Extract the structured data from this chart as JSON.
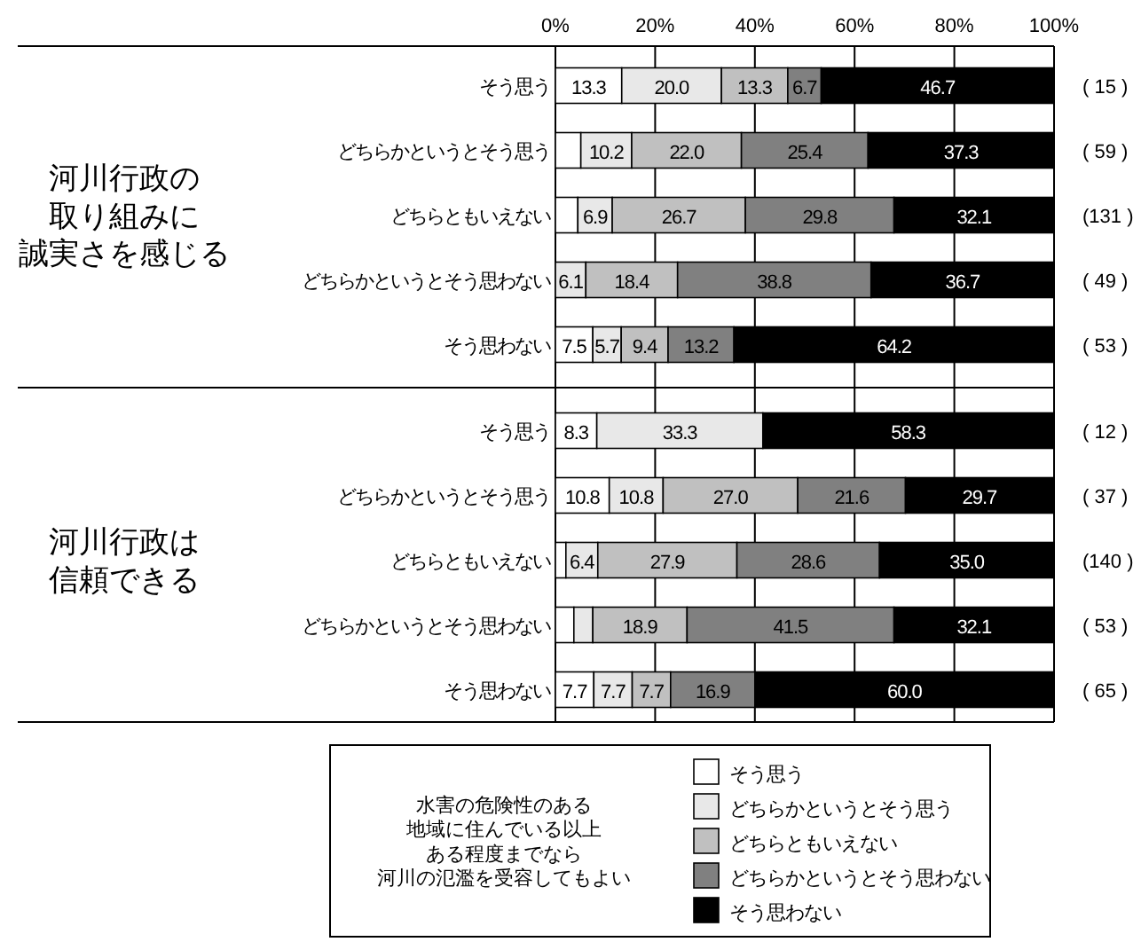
{
  "chart_data": {
    "type": "bar",
    "orientation": "horizontal",
    "stacked": true,
    "categories": [
      "そう思う",
      "どちらかというとそう思う",
      "どちらともいえない",
      "どちらかというとそう思わない",
      "そう思わない",
      "そう思う",
      "どちらかというとそう思う",
      "どちらともいえない",
      "どちらかというとそう思わない",
      "そう思わない"
    ],
    "series": [
      {
        "name": "そう思う",
        "color": "#ffffff",
        "values": [
          13.3,
          5.1,
          4.5,
          0,
          7.5,
          8.3,
          10.8,
          2.1,
          3.7,
          7.7
        ],
        "value_labels": [
          "13.3",
          null,
          null,
          null,
          "7.5",
          "8.3",
          "10.8",
          null,
          null,
          "7.7"
        ]
      },
      {
        "name": "どちらかというとそう思う",
        "color": "#e8e8e8",
        "values": [
          20.0,
          10.2,
          6.9,
          6.1,
          5.7,
          33.3,
          10.8,
          6.4,
          3.8,
          7.7
        ],
        "value_labels": [
          "20.0",
          "10.2",
          "6.9",
          "6.1",
          "5.7",
          "33.3",
          "10.8",
          "6.4",
          null,
          "7.7"
        ]
      },
      {
        "name": "どちらともいえない",
        "color": "#c0c0c0",
        "values": [
          13.3,
          22.0,
          26.7,
          18.4,
          9.4,
          0,
          27.0,
          27.9,
          18.9,
          7.7
        ],
        "value_labels": [
          "13.3",
          "22.0",
          "26.7",
          "18.4",
          "9.4",
          null,
          "27.0",
          "27.9",
          "18.9",
          "7.7"
        ]
      },
      {
        "name": "どちらかというとそう思わない",
        "color": "#808080",
        "values": [
          6.7,
          25.4,
          29.8,
          38.8,
          13.2,
          0,
          21.6,
          28.6,
          41.5,
          16.9
        ],
        "value_labels": [
          "6.7",
          "25.4",
          "29.8",
          "38.8",
          "13.2",
          null,
          "21.6",
          "28.6",
          "41.5",
          "16.9"
        ]
      },
      {
        "name": "そう思わない",
        "color": "#000000",
        "values": [
          46.7,
          37.3,
          32.1,
          36.7,
          64.2,
          58.3,
          29.7,
          35.0,
          32.1,
          60.0
        ],
        "value_labels": [
          "46.7",
          "37.3",
          "32.1",
          "36.7",
          "64.2",
          "58.3",
          "29.7",
          "35.0",
          "32.1",
          "60.0"
        ]
      }
    ],
    "xlim": [
      0,
      100
    ],
    "xticks": [
      {
        "value": 0,
        "label": "0%"
      },
      {
        "value": 20,
        "label": "20%"
      },
      {
        "value": 40,
        "label": "40%"
      },
      {
        "value": 60,
        "label": "60%"
      },
      {
        "value": 80,
        "label": "80%"
      },
      {
        "value": 100,
        "label": "100%"
      }
    ],
    "grid": "x",
    "legend": "bottom",
    "legend_title": "水害の危険性のある地域に住んでいる以上ある程度までなら河川の氾濫を受容してもよい",
    "annotations": [
      "河川行政の取り組みに誠実さを感じる",
      "河川行政は信頼できる",
      "( 15 )",
      "( 59 )",
      "(131 )",
      "( 49 )",
      "( 53 )",
      "( 12 )",
      "( 37 )",
      "(140 )",
      "( 53 )",
      "( 65 )"
    ]
  }
}
